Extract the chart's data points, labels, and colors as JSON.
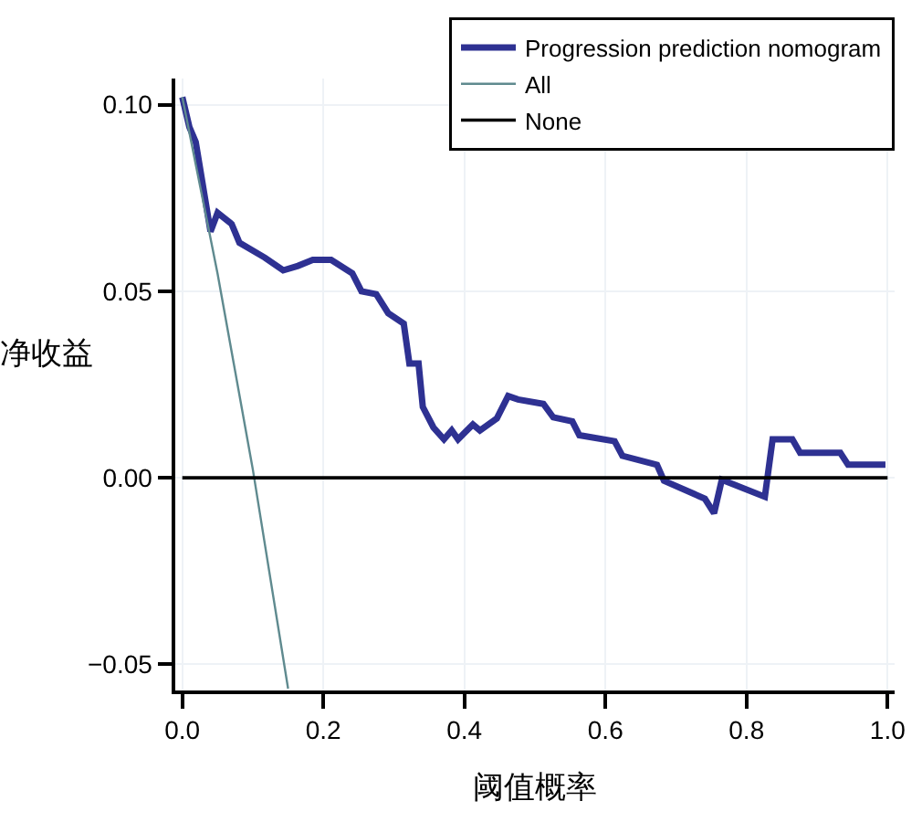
{
  "chart_data": {
    "type": "line",
    "xlabel": "阈值概率",
    "ylabel": "净收益",
    "xlim": [
      -0.01,
      1.01
    ],
    "ylim": [
      -0.057,
      0.107
    ],
    "xticks": [
      {
        "value": 0,
        "label": "0.0"
      },
      {
        "value": 0.2,
        "label": "0.2"
      },
      {
        "value": 0.4,
        "label": "0.4"
      },
      {
        "value": 0.6,
        "label": "0.6"
      },
      {
        "value": 0.8,
        "label": "0.8"
      },
      {
        "value": 1,
        "label": "1.0"
      }
    ],
    "yticks": [
      {
        "value": -0.05,
        "label": "−0.05"
      },
      {
        "value": 0,
        "label": "0.00"
      },
      {
        "value": 0.05,
        "label": "0.05"
      },
      {
        "value": 0.1,
        "label": "0.10"
      }
    ],
    "grid": true,
    "legend": "top right",
    "line_style": "solid",
    "marker": "none",
    "series": [
      {
        "name": "Progression prediction nomogram",
        "color": "#2e3192",
        "x": [
          0,
          0.01,
          0.019,
          0.04,
          0.05,
          0.07,
          0.081,
          0.117,
          0.143,
          0.164,
          0.185,
          0.211,
          0.241,
          0.254,
          0.275,
          0.292,
          0.314,
          0.322,
          0.335,
          0.341,
          0.356,
          0.371,
          0.382,
          0.391,
          0.412,
          0.422,
          0.446,
          0.462,
          0.476,
          0.512,
          0.526,
          0.553,
          0.563,
          0.613,
          0.624,
          0.673,
          0.683,
          0.741,
          0.754,
          0.765,
          0.826,
          0.837,
          0.865,
          0.876,
          0.933,
          0.944,
          0.997
        ],
        "values": [
          0.102,
          0.094,
          0.09,
          0.066,
          0.071,
          0.068,
          0.063,
          0.059,
          0.0556,
          0.0568,
          0.0584,
          0.0584,
          0.0548,
          0.05,
          0.0492,
          0.0441,
          0.0413,
          0.0306,
          0.0306,
          0.019,
          0.0135,
          0.0103,
          0.0127,
          0.0103,
          0.0143,
          0.0127,
          0.0159,
          0.0219,
          0.021,
          0.0198,
          0.0162,
          0.0151,
          0.0114,
          0.0098,
          0.0059,
          0.0035,
          -0.0008,
          -0.0056,
          -0.0095,
          -0.0005,
          -0.0051,
          0.0103,
          0.0103,
          0.0067,
          0.0067,
          0.0035,
          0.0035
        ]
      },
      {
        "name": "All",
        "color": "#5f8a8f",
        "x": [
          0,
          0.05,
          0.1,
          0.15
        ],
        "values": [
          0.102,
          0.0547,
          0.0022,
          -0.0565
        ]
      },
      {
        "name": "None",
        "color": "#000000",
        "x": [
          0,
          1
        ],
        "values": [
          0,
          0
        ]
      }
    ]
  }
}
